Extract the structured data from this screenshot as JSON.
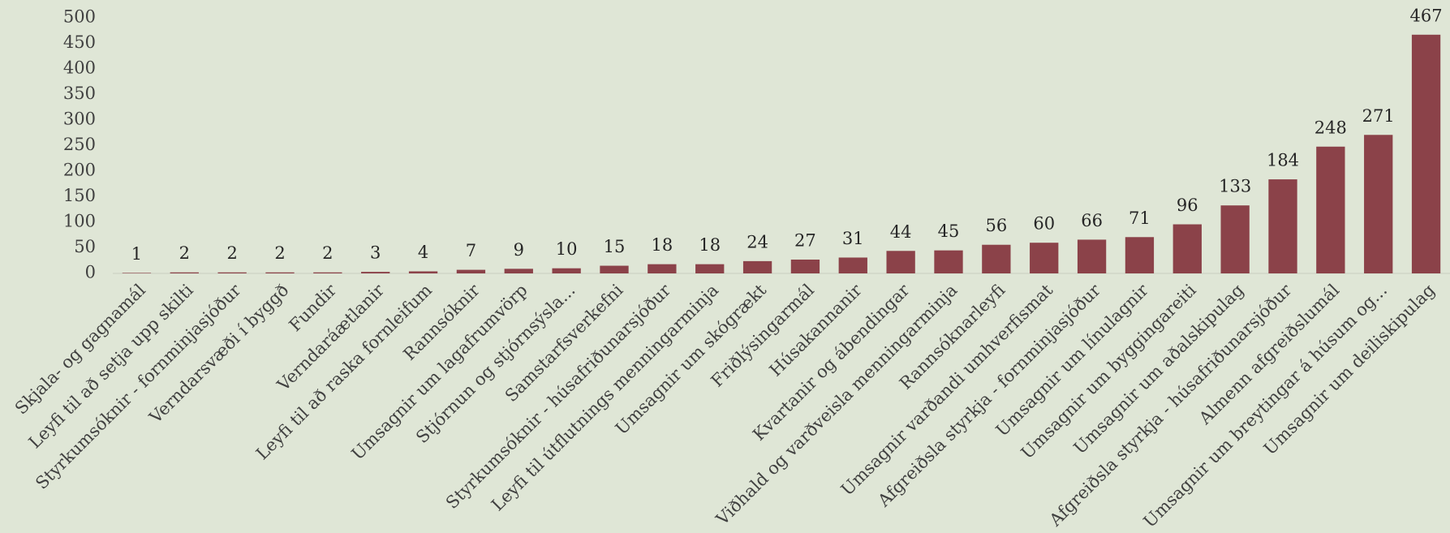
{
  "chart_data": {
    "type": "bar",
    "categories": [
      "Skjala- og gagnamál",
      "Leyfi til að setja upp skilti",
      "Styrkumsóknir - fornminjasjóður",
      "Verndarsvæði í byggð",
      "Fundir",
      "Verndaráætlanir",
      "Leyfi til að raska fornleifum",
      "Rannsóknir",
      "Umsagnir um lagafrumvörp",
      "Stjórnun og stjórnsýsla...",
      "Samstarfsverkefni",
      "Styrkumsóknir - húsafriðunarsjóður",
      "Leyfi til útflutnings menningarminja",
      "Umsagnir um skógrækt",
      "Friðlýsingarmál",
      "Húsakannanir",
      "Kvartanir og ábendingar",
      "Viðhald og varðveisla menningarminja",
      "Rannsóknarleyfi",
      "Umsagnir varðandi umhverfismat",
      "Afgreiðsla styrkja - fornminjasjóður",
      "Umsagnir um línulagnir",
      "Umsagnir um byggingareiti",
      "Umsagnir um aðalskipulag",
      "Afgreiðsla styrkja - húsafriðunarsjóður",
      "Almenn afgreiðslumál",
      "Umsagnir um breytingar á húsum og...",
      "Umsagnir um deiliskipulag"
    ],
    "values": [
      1,
      2,
      2,
      2,
      2,
      3,
      4,
      7,
      9,
      10,
      15,
      18,
      18,
      24,
      27,
      31,
      44,
      45,
      56,
      60,
      66,
      71,
      96,
      133,
      184,
      248,
      271,
      467
    ],
    "color": "#8b4249",
    "ylim": [
      0,
      500
    ],
    "yticks": [
      0,
      50,
      100,
      150,
      200,
      250,
      300,
      350,
      400,
      450,
      500
    ],
    "grid": false
  }
}
